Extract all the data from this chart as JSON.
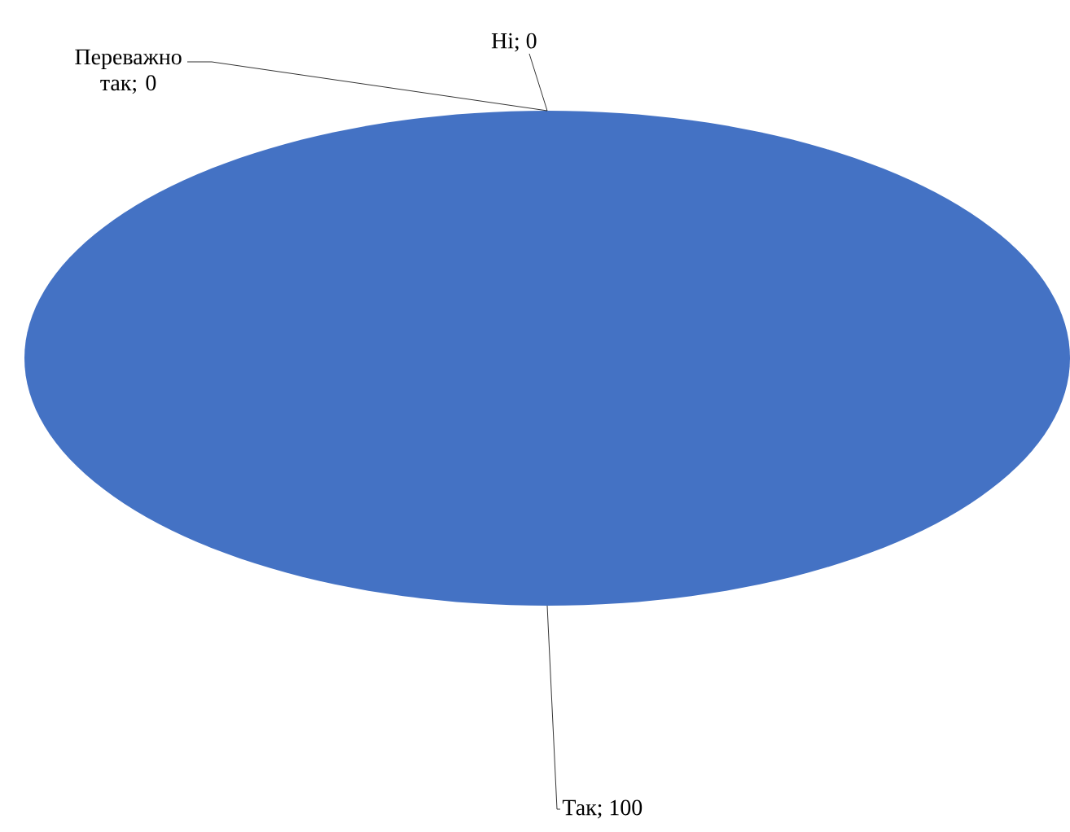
{
  "chart_data": {
    "type": "pie",
    "categories": [
      "Так",
      "Переважно так",
      "Ні"
    ],
    "values": [
      100,
      0,
      0
    ],
    "colors": [
      "#4472c4",
      "#ed7d31",
      "#a5a5a5"
    ],
    "value_labels": [
      "; 100",
      "; 0",
      "; 0"
    ],
    "data_labels": true,
    "legend": false
  }
}
